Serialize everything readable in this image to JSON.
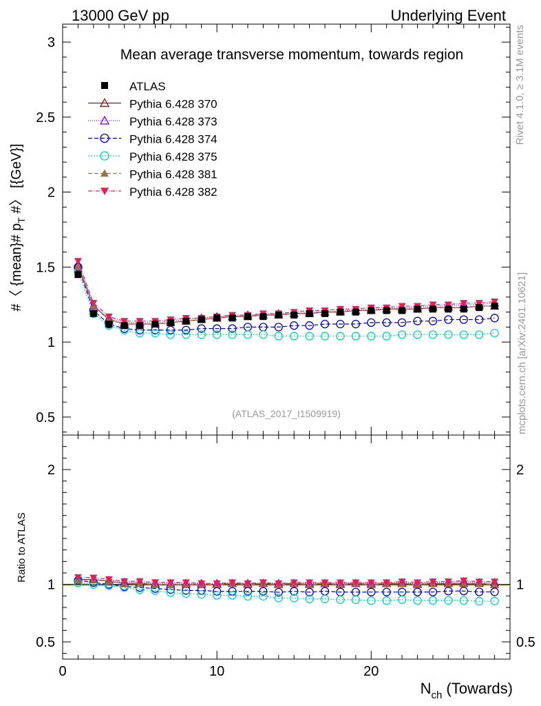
{
  "header": {
    "left": "13000 GeV pp",
    "right": "Underlying Event"
  },
  "side_labels": {
    "rivet": "Rivet 4.1.0, ≥ 3.1M events",
    "mcplots": "mcplots.cern.ch [arXiv:2401.10621]"
  },
  "chart_data": {
    "type": "line",
    "title": "Mean average transverse momentum, towards region",
    "analysis_tag": "(ATLAS_2017_I1509919)",
    "ylabel": "#〈 {mean}# p_T #〉 [{GeV}]",
    "ylabel_parts": {
      "main": "#〈 {mean}# p",
      "sub": "T",
      "tail": " #〉 [{GeV}]"
    },
    "ratio_ylabel": "Ratio to ATLAS",
    "xlabel_main": "N",
    "xlabel_sub": "ch",
    "xlabel_tail": " (Towards)",
    "xlim": [
      0,
      29
    ],
    "ylim": [
      0.38,
      3.12
    ],
    "ratio_ylim": [
      0.35,
      2.3
    ],
    "x_ticks": [
      "0",
      "10",
      "20"
    ],
    "y_ticks": [
      "0.5",
      "1",
      "1.5",
      "2",
      "2.5",
      "3"
    ],
    "ratio_y_ticks": [
      "0.5",
      "1",
      "2"
    ],
    "x": [
      1,
      2,
      3,
      4,
      5,
      6,
      7,
      8,
      9,
      10,
      11,
      12,
      13,
      14,
      15,
      16,
      17,
      18,
      19,
      20,
      21,
      22,
      23,
      24,
      25,
      26,
      27,
      28
    ],
    "data": {
      "name": "ATLAS",
      "values": [
        1.45,
        1.19,
        1.12,
        1.11,
        1.11,
        1.12,
        1.13,
        1.14,
        1.15,
        1.16,
        1.16,
        1.17,
        1.17,
        1.18,
        1.18,
        1.19,
        1.19,
        1.2,
        1.2,
        1.21,
        1.21,
        1.21,
        1.22,
        1.22,
        1.22,
        1.22,
        1.23,
        1.24
      ]
    },
    "series": [
      {
        "name": "Pythia 6.428 370",
        "color": "#8b1a1a",
        "dash": "",
        "marker": "triangle-open",
        "values": [
          1.51,
          1.24,
          1.15,
          1.12,
          1.12,
          1.12,
          1.13,
          1.14,
          1.15,
          1.16,
          1.17,
          1.17,
          1.18,
          1.18,
          1.19,
          1.19,
          1.2,
          1.2,
          1.21,
          1.21,
          1.22,
          1.22,
          1.22,
          1.23,
          1.23,
          1.23,
          1.24,
          1.24
        ]
      },
      {
        "name": "Pythia 6.428 373",
        "color": "#9400d3",
        "dash": "1,2",
        "marker": "triangle-open",
        "values": [
          1.52,
          1.24,
          1.16,
          1.13,
          1.13,
          1.13,
          1.14,
          1.15,
          1.16,
          1.17,
          1.17,
          1.18,
          1.18,
          1.19,
          1.19,
          1.2,
          1.2,
          1.21,
          1.21,
          1.22,
          1.22,
          1.23,
          1.23,
          1.24,
          1.24,
          1.25,
          1.25,
          1.26
        ]
      },
      {
        "name": "Pythia 6.428 374",
        "color": "#0000cd",
        "dash": "6,3",
        "marker": "circle-open",
        "values": [
          1.5,
          1.21,
          1.12,
          1.09,
          1.08,
          1.08,
          1.08,
          1.08,
          1.09,
          1.09,
          1.09,
          1.1,
          1.1,
          1.1,
          1.11,
          1.11,
          1.12,
          1.12,
          1.12,
          1.13,
          1.13,
          1.13,
          1.14,
          1.14,
          1.15,
          1.15,
          1.15,
          1.16
        ]
      },
      {
        "name": "Pythia 6.428 375",
        "color": "#00d6b4",
        "dash": "2,2",
        "marker": "circle-open",
        "values": [
          1.47,
          1.19,
          1.11,
          1.08,
          1.06,
          1.06,
          1.05,
          1.05,
          1.05,
          1.05,
          1.05,
          1.05,
          1.05,
          1.04,
          1.04,
          1.04,
          1.04,
          1.04,
          1.04,
          1.04,
          1.04,
          1.05,
          1.05,
          1.05,
          1.05,
          1.05,
          1.05,
          1.06
        ]
      },
      {
        "name": "Pythia 6.428 381",
        "color": "#a0703a",
        "dash": "6,3",
        "marker": "triangle-filled",
        "values": [
          1.5,
          1.24,
          1.15,
          1.12,
          1.12,
          1.12,
          1.13,
          1.14,
          1.15,
          1.16,
          1.17,
          1.17,
          1.18,
          1.18,
          1.19,
          1.19,
          1.2,
          1.2,
          1.21,
          1.21,
          1.22,
          1.22,
          1.22,
          1.23,
          1.23,
          1.23,
          1.24,
          1.24
        ]
      },
      {
        "name": "Pythia 6.428 382",
        "color": "#e0205a",
        "dash": "6,2,1,2",
        "marker": "triangle-down-filled",
        "values": [
          1.54,
          1.26,
          1.17,
          1.14,
          1.14,
          1.14,
          1.15,
          1.16,
          1.16,
          1.17,
          1.18,
          1.18,
          1.19,
          1.19,
          1.2,
          1.21,
          1.21,
          1.22,
          1.22,
          1.23,
          1.23,
          1.24,
          1.24,
          1.25,
          1.25,
          1.26,
          1.26,
          1.27
        ]
      }
    ]
  }
}
